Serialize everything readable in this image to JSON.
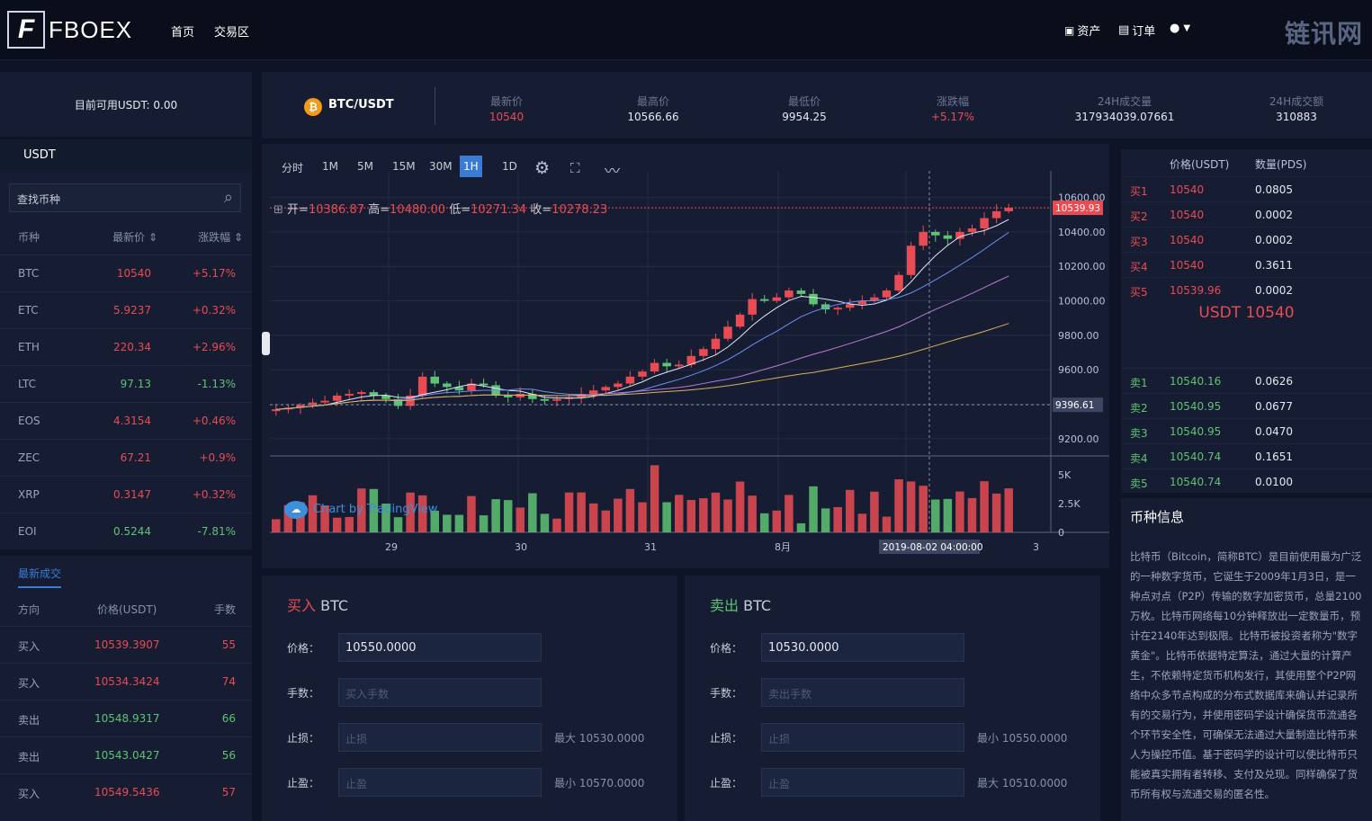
{
  "header": {
    "logo_mark": "F",
    "logo_text": "FBOEX",
    "nav": [
      "首页",
      "交易区"
    ],
    "assets": "资产",
    "orders": "订单",
    "watermark": "链讯网"
  },
  "left": {
    "balance": "目前可用USDT: 0.00",
    "tab": "USDT",
    "search_placeholder": "查找币种",
    "cols": [
      "币种",
      "最新价 ⇕",
      "涨跌幅 ⇕"
    ],
    "markets": [
      {
        "coin": "BTC",
        "price": "10540",
        "chg": "+5.17%"
      },
      {
        "coin": "ETC",
        "price": "5.9237",
        "chg": "+0.32%"
      },
      {
        "coin": "ETH",
        "price": "220.34",
        "chg": "+2.96%"
      },
      {
        "coin": "LTC",
        "price": "97.13",
        "chg": "-1.13%"
      },
      {
        "coin": "EOS",
        "price": "4.3154",
        "chg": "+0.46%"
      },
      {
        "coin": "ZEC",
        "price": "67.21",
        "chg": "+0.9%"
      },
      {
        "coin": "XRP",
        "price": "0.3147",
        "chg": "+0.32%"
      },
      {
        "coin": "EOI",
        "price": "0.5244",
        "chg": "-7.81%"
      }
    ],
    "trades_tab": "最新成交",
    "trade_cols": [
      "方向",
      "价格(USDT)",
      "手数"
    ],
    "trades": [
      {
        "dir": "买入",
        "price": "10539.3907",
        "qty": "55"
      },
      {
        "dir": "买入",
        "price": "10534.3424",
        "qty": "74"
      },
      {
        "dir": "卖出",
        "price": "10548.9317",
        "qty": "66"
      },
      {
        "dir": "卖出",
        "price": "10543.0427",
        "qty": "56"
      },
      {
        "dir": "买入",
        "price": "10549.5436",
        "qty": "57"
      }
    ]
  },
  "stats": {
    "pair": "BTC/USDT",
    "items": [
      {
        "label": "最新价",
        "value": "10540"
      },
      {
        "label": "最高价",
        "value": "10566.66"
      },
      {
        "label": "最低价",
        "value": "9954.25"
      },
      {
        "label": "涨跌幅",
        "value": "+5.17%"
      },
      {
        "label": "24H成交量",
        "value": "317934039.07661"
      },
      {
        "label": "24H成交额",
        "value": "310883"
      }
    ]
  },
  "chart": {
    "timeframes": [
      "分时",
      "1M",
      "5M",
      "15M",
      "30M",
      "1H",
      "1D"
    ],
    "active": "1H",
    "ohlc": {
      "o_label": "开=",
      "o": "10386.87",
      "h_label": "高=",
      "h": "10480.00",
      "l_label": "低=",
      "l": "10271.34",
      "c_label": "收=",
      "c": "10278.23"
    },
    "price_ticks": [
      "10600.00",
      "10400.00",
      "10200.00",
      "10000.00",
      "9800.00",
      "9600.00",
      "9400.00",
      "9200.00"
    ],
    "vol_ticks": [
      "5K",
      "2.5K",
      "0"
    ],
    "last_price_tag": "10539.93",
    "cross_price_tag": "9396.61",
    "x_ticks": [
      "29",
      "30",
      "31",
      "8月",
      "3"
    ],
    "cross_time": "2019-08-02 04:00:00",
    "attribution": "Chart by TradingView"
  },
  "chart_data": {
    "type": "candlestick",
    "title": "",
    "ylim": [
      9100,
      10650
    ],
    "y_ticks": [
      9200,
      9400,
      9600,
      9800,
      10000,
      10200,
      10400,
      10600
    ],
    "series_close_approx": [
      9370,
      9380,
      9395,
      9410,
      9420,
      9450,
      9460,
      9470,
      9450,
      9430,
      9390,
      9450,
      9560,
      9520,
      9500,
      9480,
      9520,
      9510,
      9450,
      9440,
      9460,
      9430,
      9420,
      9430,
      9440,
      9460,
      9480,
      9500,
      9520,
      9560,
      9590,
      9640,
      9620,
      9630,
      9680,
      9720,
      9780,
      9850,
      9920,
      10010,
      10000,
      10020,
      10060,
      10040,
      9980,
      9950,
      9960,
      9980,
      10000,
      10020,
      10060,
      10150,
      10320,
      10400,
      10380,
      10360,
      10400,
      10420,
      10480,
      10520,
      10540
    ]
  },
  "orderbook": {
    "cols": [
      "价格(USDT)",
      "数量(PDS)"
    ],
    "buys": [
      {
        "lb": "买1",
        "p": "10540",
        "q": "0.0805"
      },
      {
        "lb": "买2",
        "p": "10540",
        "q": "0.0002"
      },
      {
        "lb": "买3",
        "p": "10540",
        "q": "0.0002"
      },
      {
        "lb": "买4",
        "p": "10540",
        "q": "0.3611"
      },
      {
        "lb": "买5",
        "p": "10539.96",
        "q": "0.0002"
      }
    ],
    "last": "USDT 10540",
    "sells": [
      {
        "lb": "卖1",
        "p": "10540.16",
        "q": "0.0626"
      },
      {
        "lb": "卖2",
        "p": "10540.95",
        "q": "0.0677"
      },
      {
        "lb": "卖3",
        "p": "10540.95",
        "q": "0.0470"
      },
      {
        "lb": "卖4",
        "p": "10540.74",
        "q": "0.1651"
      },
      {
        "lb": "卖5",
        "p": "10540.74",
        "q": "0.0100"
      }
    ]
  },
  "info": {
    "title": "币种信息",
    "text": "比特币（Bitcoin，简称BTC）是目前使用最为广泛的一种数字货币，它诞生于2009年1月3日，是一种点对点（P2P）传输的数字加密货币，总量2100万枚。比特币网络每10分钟释放出一定数量币，预计在2140年达到极限。比特币被投资者称为\"数字黄金\"。比特币依据特定算法，通过大量的计算产生，不依赖特定货币机构发行，其使用整个P2P网络中众多节点构成的分布式数据库来确认并记录所有的交易行为，并使用密码学设计确保货币流通各个环节安全性，可确保无法通过大量制造比特币来人为操控币值。基于密码学的设计可以使比特币只能被真实拥有者转移、支付及兑现。同样确保了货币所有权与流通交易的匿名性。"
  },
  "buy": {
    "title_a": "买入",
    "title_b": "BTC",
    "price_label": "价格：",
    "price": "10550.0000",
    "qty_label": "手数：",
    "qty_ph": "买入手数",
    "sl_label": "止损：",
    "sl_ph": "止损",
    "sl_hint": "最大 10530.0000",
    "tp_label": "止盈：",
    "tp_ph": "止盈",
    "tp_hint": "最小 10570.0000"
  },
  "sell": {
    "title_a": "卖出",
    "title_b": "BTC",
    "price_label": "价格：",
    "price": "10530.0000",
    "qty_label": "手数：",
    "qty_ph": "卖出手数",
    "sl_label": "止损：",
    "sl_ph": "止损",
    "sl_hint": "最小 10550.0000",
    "tp_label": "止盈：",
    "tp_ph": "止盈",
    "tp_hint": "最大 10510.0000"
  },
  "colors": {
    "up": "#e94b52",
    "down": "#5ec373",
    "accent": "#3a7bd5",
    "bg": "#0e1425",
    "panel": "#161d32"
  }
}
